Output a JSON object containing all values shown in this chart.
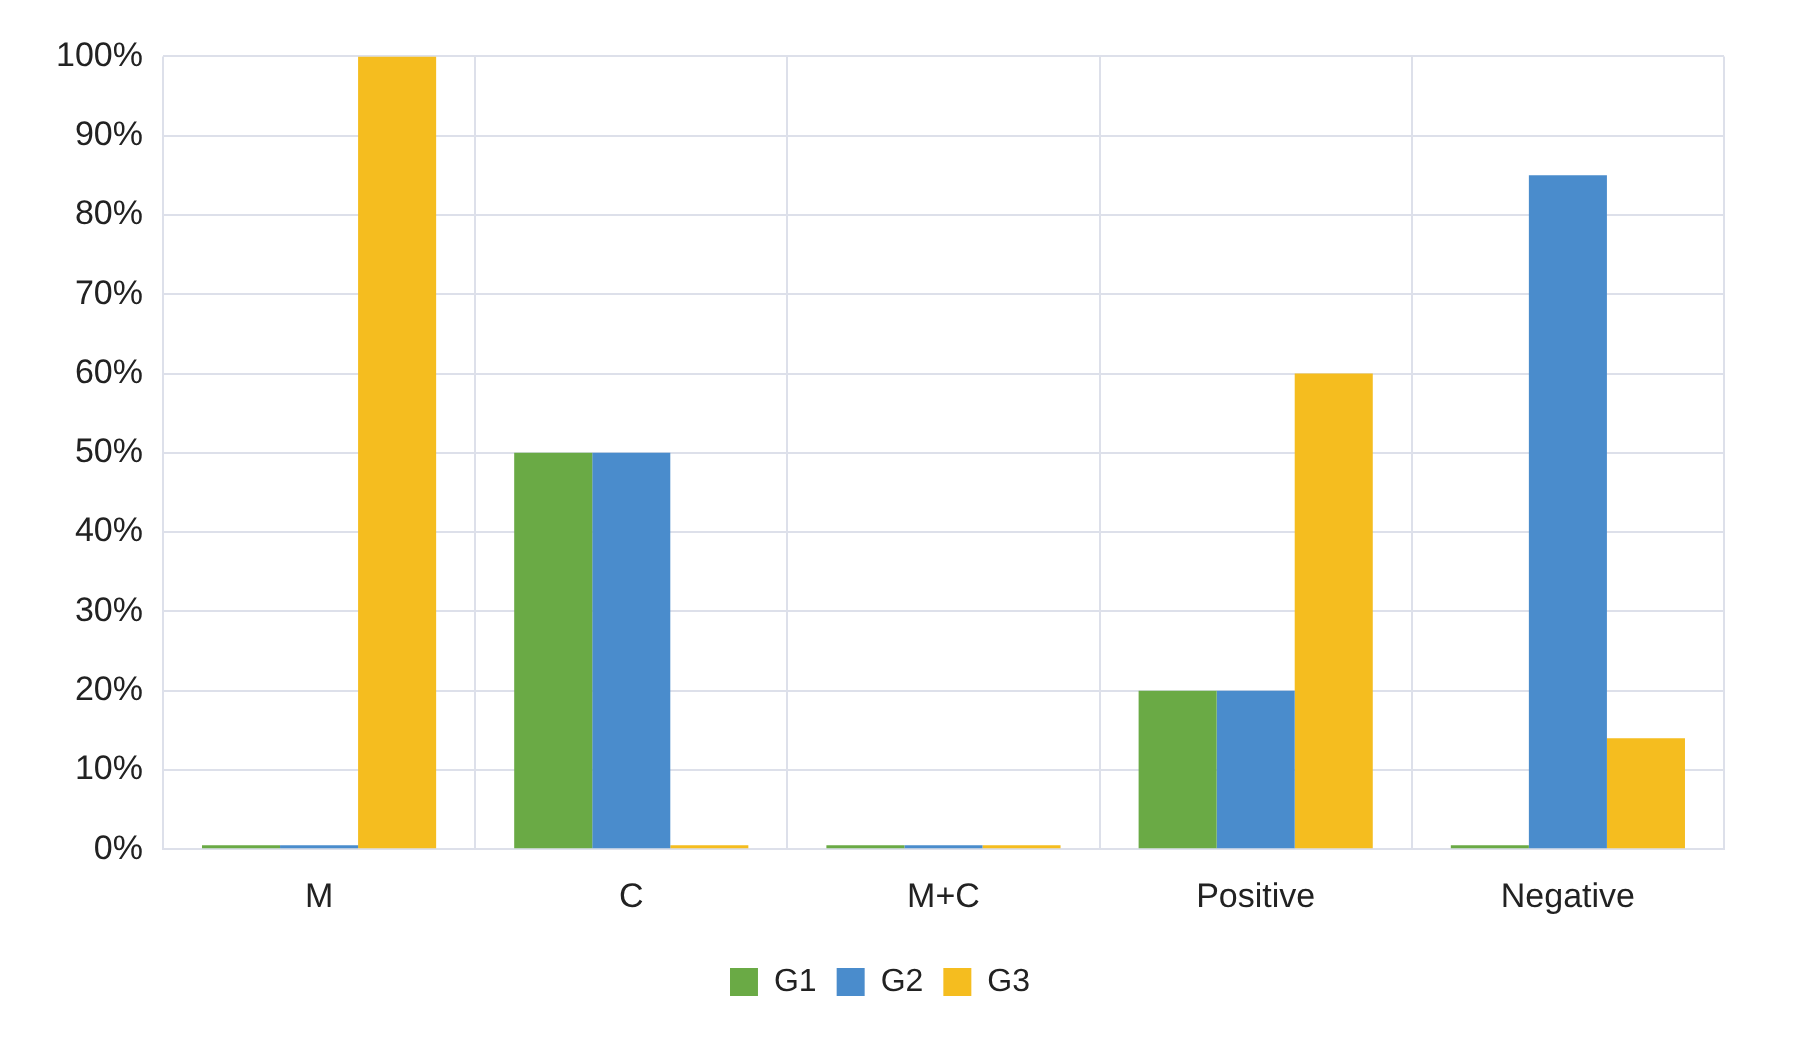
{
  "chart_data": {
    "type": "bar",
    "categories": [
      "M",
      "C",
      "M+C",
      "Positive",
      "Negative"
    ],
    "series": [
      {
        "name": "G1",
        "color": "#6aaa45",
        "values": [
          0,
          50,
          0,
          20,
          0
        ]
      },
      {
        "name": "G2",
        "color": "#4a8ccc",
        "values": [
          0,
          50,
          0,
          20,
          85
        ]
      },
      {
        "name": "G3",
        "color": "#f5bd1f",
        "values": [
          100,
          0,
          0,
          60,
          14
        ]
      }
    ],
    "ylim": [
      0,
      100
    ],
    "yticks": [
      {
        "value": 0,
        "label": "0%"
      },
      {
        "value": 10,
        "label": "10%"
      },
      {
        "value": 20,
        "label": "20%"
      },
      {
        "value": 30,
        "label": "30%"
      },
      {
        "value": 40,
        "label": "40%"
      },
      {
        "value": 50,
        "label": "50%"
      },
      {
        "value": 60,
        "label": "60%"
      },
      {
        "value": 70,
        "label": "70%"
      },
      {
        "value": 80,
        "label": "80%"
      },
      {
        "value": 90,
        "label": "90%"
      },
      {
        "value": 100,
        "label": "100%"
      }
    ],
    "grid": true,
    "legend": "bottom"
  }
}
